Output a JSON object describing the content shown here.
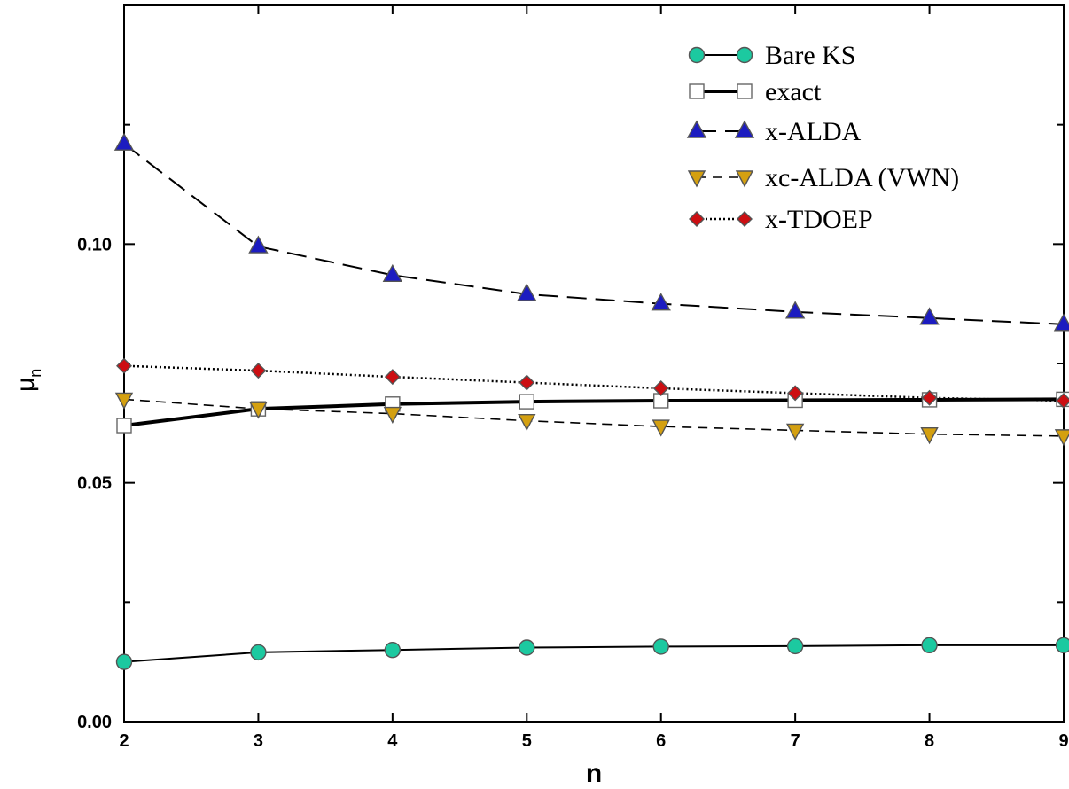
{
  "chart_data": {
    "type": "line",
    "xlabel": "n",
    "ylabel": "μ",
    "ylabel_subscript": "n",
    "xlim": [
      2,
      9
    ],
    "ylim": [
      0.0,
      0.15
    ],
    "x": [
      2,
      3,
      4,
      5,
      6,
      7,
      8,
      9
    ],
    "x_tick_labels": [
      "2",
      "3",
      "4",
      "5",
      "6",
      "7",
      "8",
      "9"
    ],
    "y_tick_values": [
      0.0,
      0.05,
      0.1
    ],
    "y_tick_labels": [
      "0.00",
      "0.05",
      "0.10"
    ],
    "y_minor_ticks": [
      0.025,
      0.075,
      0.125
    ],
    "grid": false,
    "legend_placement": "top-right",
    "series": [
      {
        "name": "Bare KS",
        "values": [
          0.0125,
          0.0145,
          0.015,
          0.0155,
          0.0157,
          0.0158,
          0.016,
          0.016
        ],
        "color": "#1cc9a0",
        "marker": "circle",
        "line": "solid-thin"
      },
      {
        "name": "exact",
        "values": [
          0.062,
          0.0655,
          0.0665,
          0.067,
          0.0672,
          0.0673,
          0.0674,
          0.0675
        ],
        "color": "#ffffff",
        "marker": "square",
        "line": "solid-thick"
      },
      {
        "name": "x-ALDA",
        "values": [
          0.121,
          0.0995,
          0.0935,
          0.0895,
          0.0875,
          0.0858,
          0.0845,
          0.0832
        ],
        "color": "#1c1cc0",
        "marker": "triangle-up",
        "line": "long-dash"
      },
      {
        "name": "xc-ALDA (VWN)",
        "values": [
          0.0675,
          0.0655,
          0.0645,
          0.063,
          0.0618,
          0.061,
          0.0602,
          0.0598
        ],
        "color": "#d4a010",
        "marker": "triangle-down",
        "line": "short-dash"
      },
      {
        "name": "x-TDOEP",
        "values": [
          0.0745,
          0.0735,
          0.0722,
          0.071,
          0.0698,
          0.0688,
          0.0678,
          0.0672
        ],
        "color": "#cc0e12",
        "marker": "diamond",
        "line": "dotted"
      }
    ]
  }
}
